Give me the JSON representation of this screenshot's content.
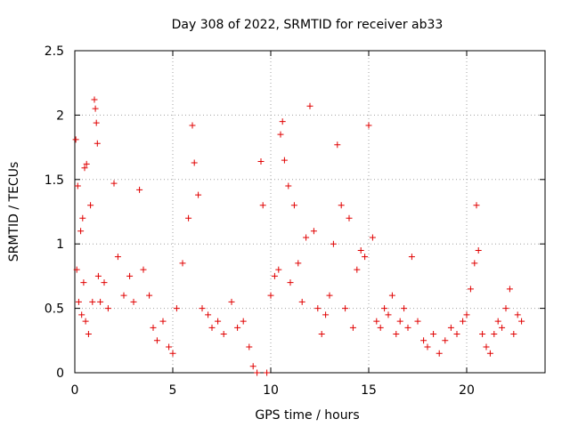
{
  "chart_data": {
    "type": "scatter",
    "title": "Day 308 of 2022, SRMTID for receiver ab33",
    "xlabel": "GPS time / hours",
    "ylabel": "SRMTID / TECUs",
    "xlim": [
      0,
      24
    ],
    "ylim": [
      0,
      2.5
    ],
    "xticks": [
      "0",
      "5",
      "10",
      "15",
      "20"
    ],
    "yticks": [
      "0",
      "0.5",
      "1",
      "1.5",
      "2",
      "2.5"
    ],
    "grid": true,
    "marker": "+",
    "series": [
      {
        "name": "ab33",
        "color": "#e00000",
        "points": [
          [
            0.05,
            1.81
          ],
          [
            0.1,
            0.8
          ],
          [
            0.15,
            1.45
          ],
          [
            0.2,
            0.55
          ],
          [
            0.3,
            1.1
          ],
          [
            0.35,
            0.45
          ],
          [
            0.4,
            1.2
          ],
          [
            0.45,
            0.7
          ],
          [
            0.5,
            1.59
          ],
          [
            0.55,
            0.4
          ],
          [
            0.6,
            1.62
          ],
          [
            0.7,
            0.3
          ],
          [
            0.8,
            1.3
          ],
          [
            0.9,
            0.55
          ],
          [
            1.0,
            2.12
          ],
          [
            1.05,
            2.05
          ],
          [
            1.1,
            1.94
          ],
          [
            1.15,
            1.78
          ],
          [
            1.2,
            0.75
          ],
          [
            1.3,
            0.55
          ],
          [
            1.5,
            0.7
          ],
          [
            1.7,
            0.5
          ],
          [
            2.0,
            1.47
          ],
          [
            2.2,
            0.9
          ],
          [
            2.5,
            0.6
          ],
          [
            2.8,
            0.75
          ],
          [
            3.0,
            0.55
          ],
          [
            3.3,
            1.42
          ],
          [
            3.5,
            0.8
          ],
          [
            3.8,
            0.6
          ],
          [
            4.0,
            0.35
          ],
          [
            4.2,
            0.25
          ],
          [
            4.5,
            0.4
          ],
          [
            4.8,
            0.2
          ],
          [
            5.0,
            0.15
          ],
          [
            5.2,
            0.5
          ],
          [
            5.5,
            0.85
          ],
          [
            5.8,
            1.2
          ],
          [
            6.0,
            1.92
          ],
          [
            6.1,
            1.63
          ],
          [
            6.3,
            1.38
          ],
          [
            6.5,
            0.5
          ],
          [
            6.8,
            0.45
          ],
          [
            7.0,
            0.35
          ],
          [
            7.3,
            0.4
          ],
          [
            7.6,
            0.3
          ],
          [
            8.0,
            0.55
          ],
          [
            8.3,
            0.35
          ],
          [
            8.6,
            0.4
          ],
          [
            8.9,
            0.2
          ],
          [
            9.1,
            0.05
          ],
          [
            9.3,
            0.0
          ],
          [
            9.5,
            1.64
          ],
          [
            9.6,
            1.3
          ],
          [
            9.8,
            0.0
          ],
          [
            10.0,
            0.6
          ],
          [
            10.2,
            0.75
          ],
          [
            10.4,
            0.8
          ],
          [
            10.5,
            1.85
          ],
          [
            10.6,
            1.95
          ],
          [
            10.7,
            1.65
          ],
          [
            10.9,
            1.45
          ],
          [
            11.0,
            0.7
          ],
          [
            11.2,
            1.3
          ],
          [
            11.4,
            0.85
          ],
          [
            11.6,
            0.55
          ],
          [
            11.8,
            1.05
          ],
          [
            12.0,
            2.07
          ],
          [
            12.2,
            1.1
          ],
          [
            12.4,
            0.5
          ],
          [
            12.6,
            0.3
          ],
          [
            12.8,
            0.45
          ],
          [
            13.0,
            0.6
          ],
          [
            13.2,
            1.0
          ],
          [
            13.4,
            1.77
          ],
          [
            13.6,
            1.3
          ],
          [
            13.8,
            0.5
          ],
          [
            14.0,
            1.2
          ],
          [
            14.2,
            0.35
          ],
          [
            14.4,
            0.8
          ],
          [
            14.6,
            0.95
          ],
          [
            14.8,
            0.9
          ],
          [
            15.0,
            1.92
          ],
          [
            15.2,
            1.05
          ],
          [
            15.4,
            0.4
          ],
          [
            15.6,
            0.35
          ],
          [
            15.8,
            0.5
          ],
          [
            16.0,
            0.45
          ],
          [
            16.2,
            0.6
          ],
          [
            16.4,
            0.3
          ],
          [
            16.6,
            0.4
          ],
          [
            16.8,
            0.5
          ],
          [
            17.0,
            0.35
          ],
          [
            17.2,
            0.9
          ],
          [
            17.5,
            0.4
          ],
          [
            17.8,
            0.25
          ],
          [
            18.0,
            0.2
          ],
          [
            18.3,
            0.3
          ],
          [
            18.6,
            0.15
          ],
          [
            18.9,
            0.25
          ],
          [
            19.2,
            0.35
          ],
          [
            19.5,
            0.3
          ],
          [
            19.8,
            0.4
          ],
          [
            20.0,
            0.45
          ],
          [
            20.2,
            0.65
          ],
          [
            20.4,
            0.85
          ],
          [
            20.5,
            1.3
          ],
          [
            20.6,
            0.95
          ],
          [
            20.8,
            0.3
          ],
          [
            21.0,
            0.2
          ],
          [
            21.2,
            0.15
          ],
          [
            21.4,
            0.3
          ],
          [
            21.6,
            0.4
          ],
          [
            21.8,
            0.35
          ],
          [
            22.0,
            0.5
          ],
          [
            22.2,
            0.65
          ],
          [
            22.4,
            0.3
          ],
          [
            22.6,
            0.45
          ],
          [
            22.8,
            0.4
          ]
        ]
      }
    ]
  }
}
